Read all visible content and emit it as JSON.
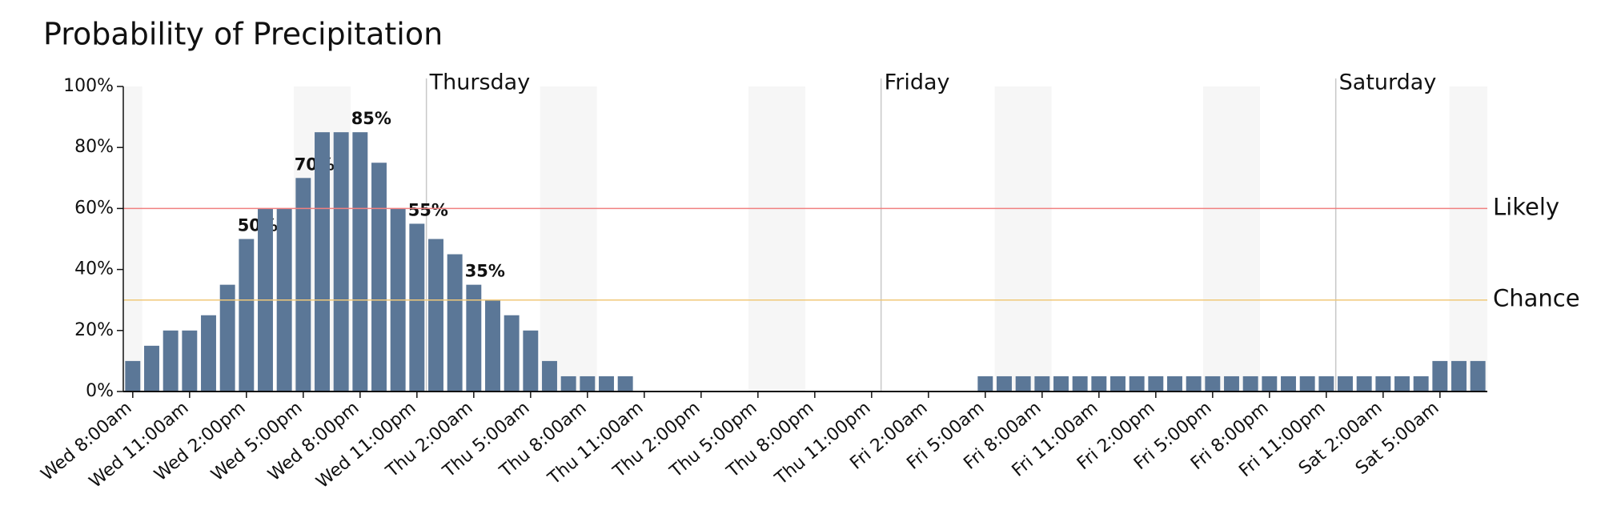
{
  "chart_data": {
    "type": "bar",
    "title": "Probability of Precipitation",
    "categories": [
      "Wed 8:00am",
      null,
      null,
      "Wed 11:00am",
      null,
      null,
      "Wed 2:00pm",
      null,
      null,
      "Wed 5:00pm",
      null,
      null,
      "Wed 8:00pm",
      null,
      null,
      "Wed 11:00pm",
      null,
      null,
      "Thu 2:00am",
      null,
      null,
      "Thu 5:00am",
      null,
      null,
      "Thu 8:00am",
      null,
      null,
      "Thu 11:00am",
      null,
      null,
      "Thu 2:00pm",
      null,
      null,
      "Thu 5:00pm",
      null,
      null,
      "Thu 8:00pm",
      null,
      null,
      "Thu 11:00pm",
      null,
      null,
      "Fri 2:00am",
      null,
      null,
      "Fri 5:00am",
      null,
      null,
      "Fri 8:00am",
      null,
      null,
      "Fri 11:00am",
      null,
      null,
      "Fri 2:00pm",
      null,
      null,
      "Fri 5:00pm",
      null,
      null,
      "Fri 8:00pm",
      null,
      null,
      "Fri 11:00pm",
      null,
      null,
      "Sat 2:00am",
      null,
      null,
      "Sat 5:00am",
      null,
      null
    ],
    "values": [
      10,
      15,
      20,
      20,
      25,
      35,
      50,
      60,
      60,
      70,
      85,
      85,
      85,
      75,
      60,
      55,
      50,
      45,
      35,
      30,
      25,
      20,
      10,
      5,
      5,
      5,
      5,
      0,
      0,
      0,
      0,
      0,
      0,
      0,
      0,
      0,
      0,
      0,
      0,
      0,
      0,
      0,
      0,
      0,
      0,
      5,
      5,
      5,
      5,
      5,
      5,
      5,
      5,
      5,
      5,
      5,
      5,
      5,
      5,
      5,
      5,
      5,
      5,
      5,
      5,
      5,
      5,
      5,
      5,
      10,
      10,
      10
    ],
    "value_labels": [
      null,
      null,
      null,
      null,
      null,
      null,
      "50%",
      null,
      null,
      "70%",
      null,
      null,
      "85%",
      null,
      null,
      "55%",
      null,
      null,
      "35%",
      null,
      null,
      null,
      null,
      null,
      null,
      null,
      null,
      null,
      null,
      null,
      null,
      null,
      null,
      null,
      null,
      null,
      null,
      null,
      null,
      null,
      null,
      null,
      null,
      null,
      null,
      null,
      null,
      null,
      null,
      null,
      null,
      null,
      null,
      null,
      null,
      null,
      null,
      null,
      null,
      null,
      null,
      null,
      null,
      null,
      null,
      null,
      null,
      null,
      null,
      null,
      null,
      null
    ],
    "color": "#5b7797",
    "ylim": [
      0,
      100
    ],
    "yticks": [
      {
        "value": 0,
        "label": "0%"
      },
      {
        "value": 20,
        "label": "20%"
      },
      {
        "value": 40,
        "label": "40%"
      },
      {
        "value": 60,
        "label": "60%"
      },
      {
        "value": 80,
        "label": "80%"
      },
      {
        "value": 100,
        "label": "100%"
      }
    ],
    "thresholds": [
      {
        "label": "Likely",
        "value": 60,
        "color": "#f08080",
        "text_color": "#3a0a14"
      },
      {
        "label": "Chance",
        "value": 30,
        "color": "#f0c878",
        "text_color": "#2e2410"
      }
    ],
    "day_markers": [
      {
        "label": "Thursday",
        "index": 16
      },
      {
        "label": "Friday",
        "index": 40
      },
      {
        "label": "Saturday",
        "index": 64
      }
    ],
    "shaded_bands": [
      [
        0,
        0
      ],
      [
        9,
        11
      ],
      [
        22,
        24
      ],
      [
        33,
        35
      ],
      [
        46,
        48
      ],
      [
        57,
        59
      ],
      [
        70,
        71
      ]
    ]
  }
}
